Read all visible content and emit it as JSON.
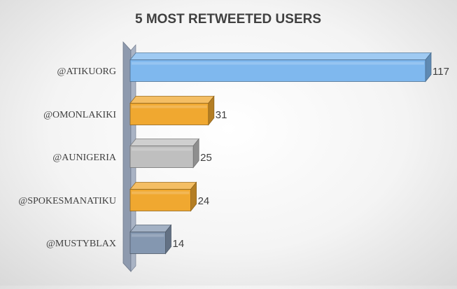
{
  "chart_data": {
    "type": "bar",
    "orientation": "horizontal",
    "style": "3d",
    "title": "5 MOST RETWEETED USERS",
    "xlabel": "",
    "ylabel": "",
    "categories": [
      "@ATIKUORG",
      "@OMONLAKIKI",
      "@AUNIGERIA",
      "@SPOKESMANATIKU",
      "@MUSTYBLAX"
    ],
    "values": [
      117,
      31,
      25,
      24,
      14
    ],
    "bar_colors": [
      "#7FB8EE",
      "#F0A830",
      "#BFBFBF",
      "#F0A830",
      "#8497B0"
    ],
    "xlim": [
      0,
      117
    ],
    "grid": false,
    "legend": "none"
  }
}
